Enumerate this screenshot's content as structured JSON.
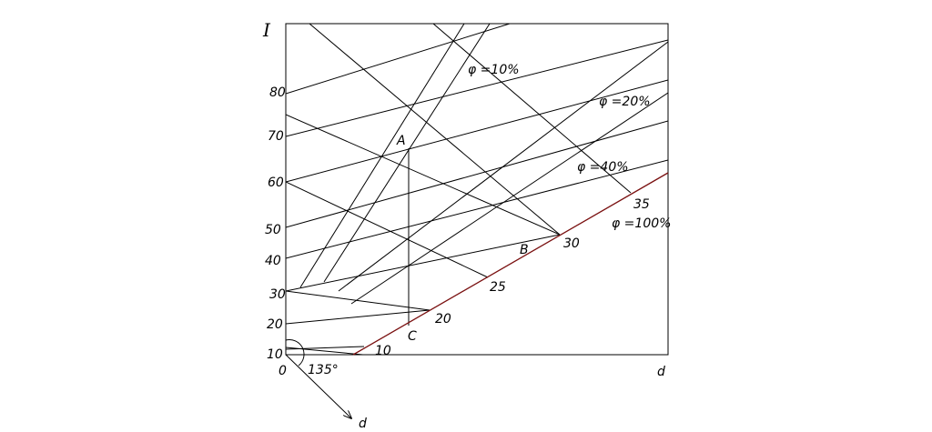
{
  "axes": {
    "y_label": "I",
    "x_label": "d",
    "x_label_bottom": "d",
    "origin": "0",
    "angle": "135°",
    "y_ticks": [
      "10",
      "20",
      "30",
      "40",
      "50",
      "60",
      "70",
      "80"
    ]
  },
  "humidity_curves": [
    {
      "label": "φ =10%"
    },
    {
      "label": "φ =20%"
    },
    {
      "label": "φ =40%"
    },
    {
      "label": "φ =100%"
    }
  ],
  "temperature_ticks": [
    "10",
    "20",
    "25",
    "30",
    "35"
  ],
  "points": {
    "A": "A",
    "B": "B",
    "C": "C"
  }
}
